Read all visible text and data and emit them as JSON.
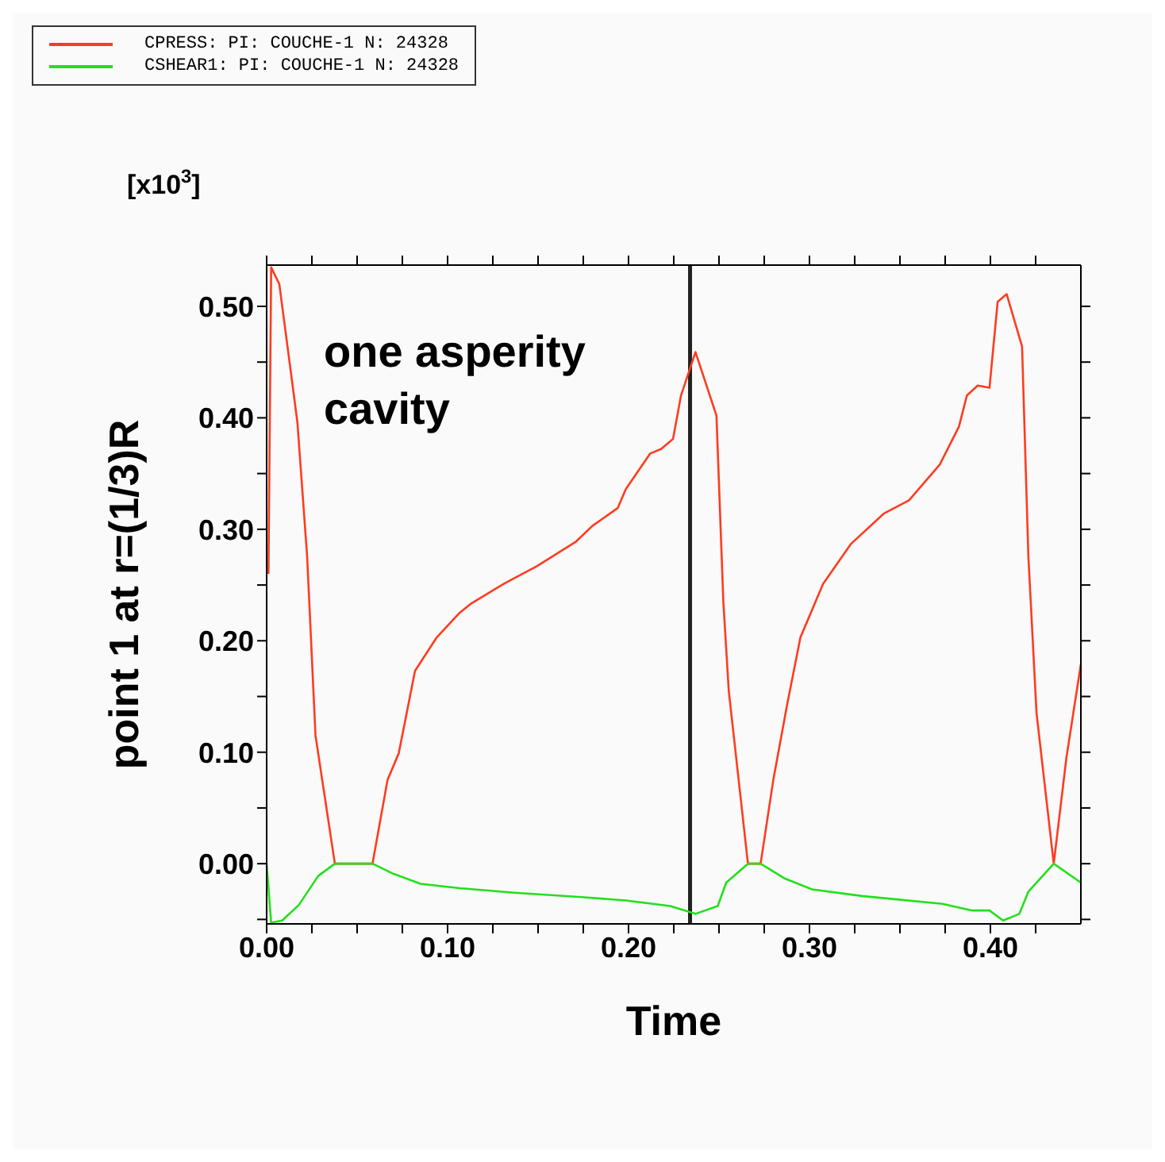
{
  "chart_data": {
    "type": "line",
    "xlabel": "Time",
    "ylabel": "point 1 at r=(1/3)R",
    "annotations": [
      "[x10$^{3}$]",
      "one asperity cavity"
    ],
    "legend": "top left",
    "marker": "none",
    "line_style": "solid",
    "grid": false,
    "xlim": [
      0,
      0.45
    ],
    "ylim": [
      -0.054,
      0.537
    ],
    "xticks": [
      {
        "value": 0,
        "label": "0.00"
      },
      {
        "value": 0.025,
        "label": null
      },
      {
        "value": 0.05,
        "label": null
      },
      {
        "value": 0.075,
        "label": null
      },
      {
        "value": 0.1,
        "label": "0.10"
      },
      {
        "value": 0.125,
        "label": null
      },
      {
        "value": 0.15,
        "label": null
      },
      {
        "value": 0.175,
        "label": null
      },
      {
        "value": 0.2,
        "label": "0.20"
      },
      {
        "value": 0.225,
        "label": null
      },
      {
        "value": 0.25,
        "label": null
      },
      {
        "value": 0.275,
        "label": null
      },
      {
        "value": 0.3,
        "label": "0.30"
      },
      {
        "value": 0.325,
        "label": null
      },
      {
        "value": 0.35,
        "label": null
      },
      {
        "value": 0.375,
        "label": null
      },
      {
        "value": 0.4,
        "label": "0.40"
      },
      {
        "value": 0.425,
        "label": null
      }
    ],
    "yticks": [
      {
        "value": -0.05,
        "label": null
      },
      {
        "value": 0,
        "label": "0.00"
      },
      {
        "value": 0.05,
        "label": null
      },
      {
        "value": 0.1,
        "label": "0.10"
      },
      {
        "value": 0.15,
        "label": null
      },
      {
        "value": 0.2,
        "label": "0.20"
      },
      {
        "value": 0.25,
        "label": null
      },
      {
        "value": 0.3,
        "label": "0.30"
      },
      {
        "value": 0.35,
        "label": null
      },
      {
        "value": 0.4,
        "label": "0.40"
      },
      {
        "value": 0.45,
        "label": null
      },
      {
        "value": 0.5,
        "label": "0.50"
      }
    ],
    "ref_lines": [
      {
        "axis": "x",
        "value": 0.234,
        "color": "#222222"
      }
    ],
    "series": [
      {
        "name": "CPRESS: PI: COUCHE-1 N: 24328",
        "color": "#ff3b1f",
        "x": [
          0.001,
          0.0025,
          0.007,
          0.017,
          0.0224,
          0.027,
          0.0377,
          0.0585,
          0.0668,
          0.073,
          0.082,
          0.094,
          0.1066,
          0.1127,
          0.131,
          0.1495,
          0.171,
          0.18,
          0.194,
          0.1985,
          0.212,
          0.218,
          0.2246,
          0.229,
          0.237,
          0.2486,
          0.2524,
          0.2554,
          0.266,
          0.273,
          0.28,
          0.2877,
          0.295,
          0.3075,
          0.323,
          0.341,
          0.355,
          0.372,
          0.3826,
          0.387,
          0.393,
          0.3995,
          0.404,
          0.409,
          0.4175,
          0.421,
          0.4255,
          0.435,
          0.442,
          0.45
        ],
        "values": [
          0.26,
          0.535,
          0.52,
          0.396,
          0.275,
          0.115,
          0,
          0,
          0.075,
          0.099,
          0.173,
          0.203,
          0.225,
          0.233,
          0.251,
          0.267,
          0.289,
          0.303,
          0.319,
          0.336,
          0.368,
          0.372,
          0.381,
          0.42,
          0.459,
          0.402,
          0.235,
          0.155,
          0,
          0,
          0.075,
          0.143,
          0.203,
          0.251,
          0.287,
          0.314,
          0.326,
          0.358,
          0.392,
          0.42,
          0.429,
          0.427,
          0.504,
          0.511,
          0.464,
          0.275,
          0.135,
          0,
          0.095,
          0.179
        ]
      },
      {
        "name": "CSHEAR1: PI: COUCHE-1 N: 24328",
        "color": "#22e01a",
        "x": [
          0,
          0.0025,
          0.0086,
          0.0178,
          0.0285,
          0.0377,
          0.0585,
          0.07,
          0.085,
          0.1066,
          0.137,
          0.174,
          0.1985,
          0.223,
          0.237,
          0.2493,
          0.254,
          0.266,
          0.273,
          0.286,
          0.3014,
          0.329,
          0.3735,
          0.39,
          0.3995,
          0.407,
          0.416,
          0.421,
          0.435,
          0.45
        ],
        "values": [
          0,
          -0.053,
          -0.051,
          -0.037,
          -0.011,
          0,
          0,
          -0.009,
          -0.018,
          -0.022,
          -0.026,
          -0.03,
          -0.033,
          -0.038,
          -0.045,
          -0.038,
          -0.017,
          0,
          0,
          -0.013,
          -0.023,
          -0.029,
          -0.036,
          -0.042,
          -0.042,
          -0.051,
          -0.045,
          -0.025,
          0,
          -0.017
        ]
      }
    ]
  }
}
